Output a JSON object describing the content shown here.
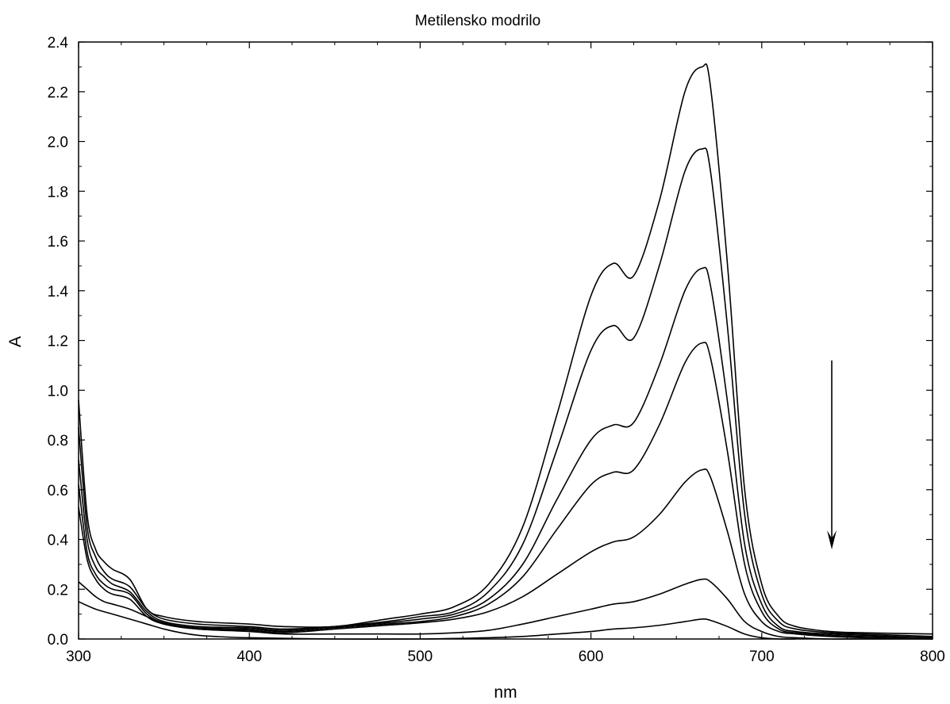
{
  "chart_data": {
    "type": "line",
    "title": "Metilensko modrilo",
    "xlabel": "nm",
    "ylabel": "A",
    "xlim": [
      300,
      800
    ],
    "ylim": [
      0.0,
      2.4
    ],
    "x_ticks": [
      "300",
      "400",
      "500",
      "600",
      "700",
      "800"
    ],
    "y_ticks": [
      "0.0",
      "0.2",
      "0.4",
      "0.6",
      "0.8",
      "1.0",
      "1.2",
      "1.4",
      "1.6",
      "1.8",
      "2.0",
      "2.2",
      "2.4"
    ],
    "grid": false,
    "line_color": "#000000",
    "annotations": [
      {
        "kind": "arrow",
        "direction": "down",
        "from": [
          741,
          1.12
        ],
        "to": [
          741,
          0.36
        ]
      }
    ],
    "series": [
      {
        "x": [
          300,
          305,
          310,
          315,
          320,
          330,
          340,
          350,
          370,
          400,
          420,
          450,
          480,
          500,
          520,
          540,
          560,
          580,
          600,
          613,
          625,
          640,
          655,
          665,
          670,
          680,
          690,
          700,
          710,
          720,
          740,
          760,
          800
        ],
        "y": [
          0.96,
          0.5,
          0.36,
          0.31,
          0.28,
          0.24,
          0.12,
          0.09,
          0.07,
          0.06,
          0.05,
          0.05,
          0.08,
          0.1,
          0.13,
          0.22,
          0.45,
          0.9,
          1.38,
          1.51,
          1.46,
          1.76,
          2.2,
          2.3,
          2.22,
          1.5,
          0.6,
          0.22,
          0.09,
          0.05,
          0.03,
          0.025,
          0.02
        ]
      },
      {
        "x": [
          300,
          305,
          310,
          315,
          320,
          330,
          340,
          350,
          370,
          400,
          420,
          450,
          480,
          500,
          520,
          540,
          560,
          580,
          600,
          613,
          625,
          640,
          655,
          665,
          670,
          680,
          690,
          700,
          710,
          720,
          740,
          760,
          800
        ],
        "y": [
          0.85,
          0.45,
          0.33,
          0.27,
          0.24,
          0.21,
          0.12,
          0.08,
          0.06,
          0.05,
          0.04,
          0.05,
          0.07,
          0.09,
          0.11,
          0.19,
          0.38,
          0.76,
          1.16,
          1.26,
          1.21,
          1.5,
          1.88,
          1.97,
          1.88,
          1.25,
          0.5,
          0.18,
          0.07,
          0.04,
          0.025,
          0.02,
          0.01
        ]
      },
      {
        "x": [
          300,
          305,
          310,
          315,
          320,
          330,
          340,
          350,
          370,
          400,
          420,
          450,
          480,
          500,
          520,
          540,
          560,
          580,
          600,
          613,
          625,
          640,
          655,
          665,
          670,
          680,
          690,
          700,
          710,
          720,
          740,
          760,
          800
        ],
        "y": [
          0.72,
          0.4,
          0.29,
          0.25,
          0.22,
          0.19,
          0.11,
          0.07,
          0.05,
          0.045,
          0.035,
          0.05,
          0.065,
          0.08,
          0.1,
          0.16,
          0.3,
          0.56,
          0.8,
          0.86,
          0.87,
          1.1,
          1.4,
          1.49,
          1.42,
          0.95,
          0.38,
          0.14,
          0.05,
          0.03,
          0.02,
          0.015,
          0.005
        ]
      },
      {
        "x": [
          300,
          305,
          310,
          315,
          320,
          330,
          340,
          350,
          370,
          400,
          420,
          450,
          480,
          500,
          520,
          540,
          560,
          580,
          600,
          613,
          625,
          640,
          655,
          665,
          670,
          680,
          690,
          700,
          710,
          720,
          740,
          760,
          800
        ],
        "y": [
          0.62,
          0.35,
          0.26,
          0.22,
          0.2,
          0.18,
          0.1,
          0.065,
          0.045,
          0.04,
          0.03,
          0.045,
          0.06,
          0.07,
          0.09,
          0.14,
          0.25,
          0.44,
          0.62,
          0.67,
          0.68,
          0.86,
          1.11,
          1.19,
          1.13,
          0.75,
          0.3,
          0.11,
          0.04,
          0.025,
          0.015,
          0.01,
          0.005
        ]
      },
      {
        "x": [
          300,
          305,
          310,
          315,
          320,
          330,
          340,
          350,
          370,
          400,
          420,
          450,
          480,
          500,
          520,
          540,
          560,
          580,
          600,
          613,
          625,
          640,
          655,
          665,
          670,
          680,
          690,
          700,
          710,
          720,
          740,
          760,
          800
        ],
        "y": [
          0.53,
          0.32,
          0.24,
          0.2,
          0.18,
          0.16,
          0.09,
          0.06,
          0.04,
          0.035,
          0.025,
          0.04,
          0.055,
          0.065,
          0.08,
          0.11,
          0.17,
          0.26,
          0.35,
          0.39,
          0.41,
          0.5,
          0.63,
          0.68,
          0.65,
          0.43,
          0.18,
          0.07,
          0.03,
          0.02,
          0.01,
          0.005,
          0.0
        ]
      },
      {
        "x": [
          300,
          305,
          310,
          315,
          320,
          330,
          340,
          350,
          370,
          400,
          420,
          450,
          480,
          500,
          520,
          540,
          560,
          580,
          600,
          613,
          625,
          640,
          655,
          665,
          670,
          680,
          690,
          700,
          710,
          720,
          740,
          760,
          800
        ],
        "y": [
          0.23,
          0.2,
          0.17,
          0.15,
          0.14,
          0.12,
          0.09,
          0.06,
          0.04,
          0.03,
          0.02,
          0.02,
          0.02,
          0.02,
          0.025,
          0.035,
          0.06,
          0.09,
          0.12,
          0.14,
          0.15,
          0.18,
          0.22,
          0.24,
          0.23,
          0.16,
          0.07,
          0.03,
          0.01,
          0.005,
          0.0,
          0.0,
          0.0
        ]
      },
      {
        "x": [
          300,
          310,
          320,
          330,
          340,
          350,
          360,
          370,
          380,
          400,
          450,
          500,
          540,
          560,
          580,
          600,
          613,
          625,
          640,
          655,
          665,
          670,
          680,
          690,
          700,
          710,
          720
        ],
        "y": [
          0.15,
          0.12,
          0.1,
          0.08,
          0.06,
          0.04,
          0.025,
          0.015,
          0.01,
          0.005,
          0.0,
          0.0,
          0.005,
          0.01,
          0.02,
          0.03,
          0.04,
          0.045,
          0.055,
          0.07,
          0.08,
          0.075,
          0.05,
          0.02,
          0.005,
          0.0,
          0.0
        ]
      }
    ]
  }
}
